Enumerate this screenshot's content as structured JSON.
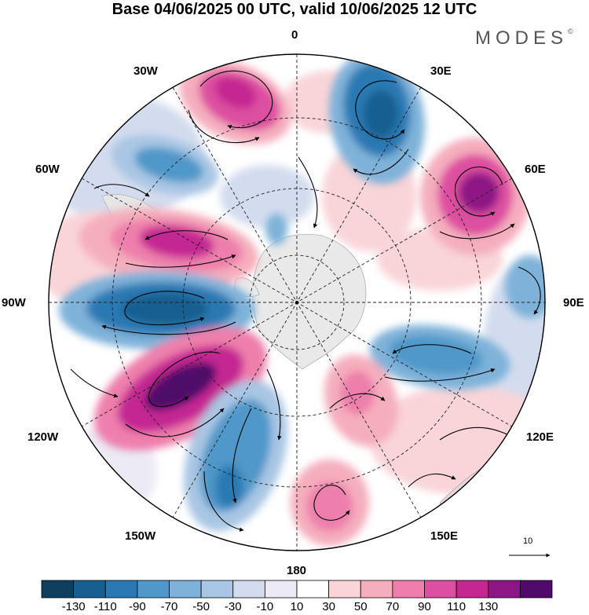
{
  "title": "Base 04/06/2025 00 UTC, valid 10/06/2025 12 UTC",
  "brand": "MODES",
  "brand_mark": "©",
  "map": {
    "projection": "polar-stereographic-south",
    "graticule": "dashed",
    "longitude_labels": {
      "lon_0": "0",
      "lon_30e": "30E",
      "lon_60e": "60E",
      "lon_90e": "90E",
      "lon_120e": "120E",
      "lon_150e": "150E",
      "lon_180": "180",
      "lon_150w": "150W",
      "lon_120w": "120W",
      "lon_90w": "90W",
      "lon_60w": "60W",
      "lon_30w": "30W"
    },
    "land_color": "#e9e9e9"
  },
  "wind_scale": {
    "label": "10"
  },
  "colorbar": {
    "ticks": [
      "-130",
      "-110",
      "-90",
      "-70",
      "-50",
      "-30",
      "-10",
      "10",
      "30",
      "50",
      "70",
      "90",
      "110",
      "130"
    ],
    "colors": [
      "#0f3f5f",
      "#175f90",
      "#2b79b3",
      "#4f98c9",
      "#7fb2d9",
      "#a9c6e4",
      "#d3dcee",
      "#eceaf4",
      "#ffffff",
      "#f9d4d8",
      "#f5aebd",
      "#ee7fac",
      "#dd4fa0",
      "#c42692",
      "#8e1685",
      "#4f0a6b"
    ]
  }
}
